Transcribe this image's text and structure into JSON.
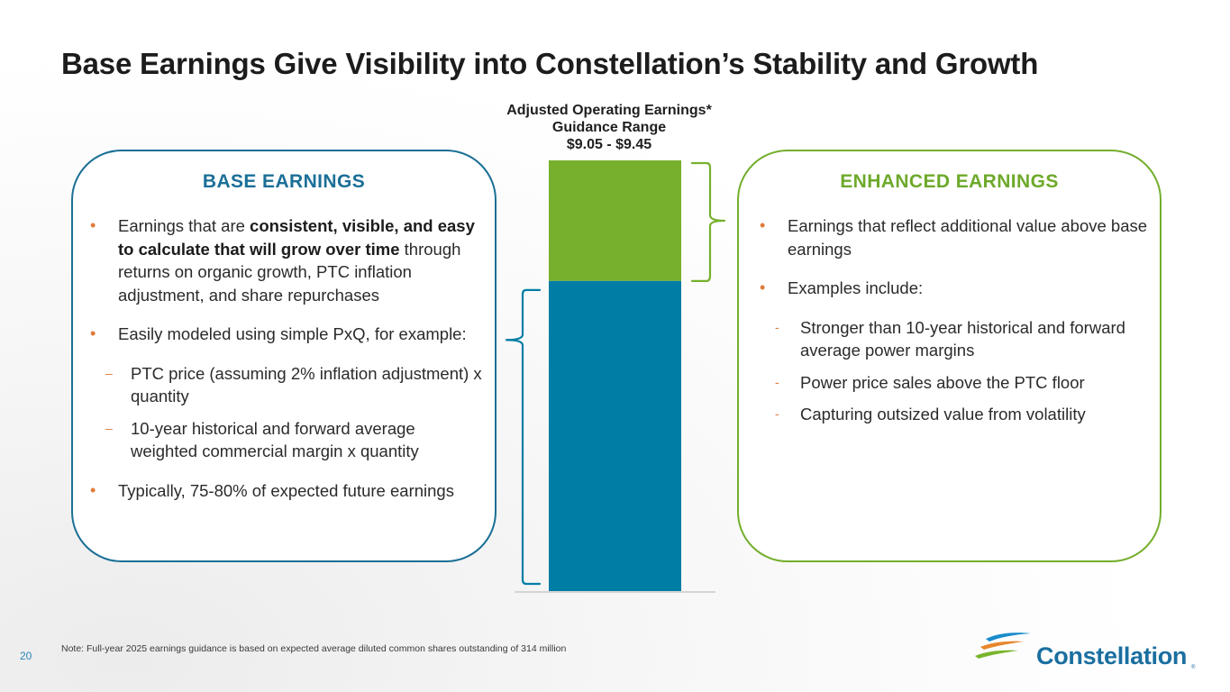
{
  "title": "Base Earnings Give Visibility into Constellation’s Stability and Growth",
  "base_panel": {
    "title": "BASE EARNINGS",
    "bullet1_pre": "Earnings that are ",
    "bullet1_bold": "consistent, visible, and easy to calculate that will grow over time",
    "bullet1_post": " through returns on organic growth, PTC inflation adjustment, and share repurchases",
    "bullet2": "Easily modeled using simple PxQ, for example:",
    "dash1": "PTC price (assuming 2% inflation adjustment) x quantity",
    "dash2": "10-year historical and forward average weighted commercial margin x quantity",
    "bullet3": "Typically, 75-80% of expected future earnings",
    "bullet_marker": "•",
    "dash_marker": "–"
  },
  "enhanced_panel": {
    "title": "ENHANCED EARNINGS",
    "bullet1": "Earnings that reflect additional value above base earnings",
    "bullet2": "Examples include:",
    "dash1": "Stronger than 10-year historical and forward average power margins",
    "dash2": "Power price sales above the PTC floor",
    "dash3": "Capturing outsized value from volatility",
    "bullet_marker": "•",
    "dash_marker": "-"
  },
  "chart_header": {
    "line1": "Adjusted Operating Earnings*",
    "line2": "Guidance Range",
    "line3": "$9.05 - $9.45"
  },
  "chart_data": {
    "type": "bar",
    "stacked": true,
    "categories": [
      ""
    ],
    "series": [
      {
        "name": "",
        "values": [
          72
        ],
        "color": "#007da5"
      },
      {
        "name": "",
        "values": [
          28
        ],
        "color": "#76b02c"
      }
    ],
    "title": "",
    "xlabel": "",
    "ylabel": "",
    "ylim": [
      0,
      100
    ],
    "grid": false
  },
  "footnote": "Note: Full-year 2025 earnings guidance is based on expected average diluted common shares outstanding of 314 million",
  "page_number": "20",
  "logo": {
    "name": "Constellation",
    "reg": "®"
  },
  "colors": {
    "base_blue": "#007da5",
    "enhanced_green": "#76b02c",
    "bullet_orange": "#e07b39"
  }
}
